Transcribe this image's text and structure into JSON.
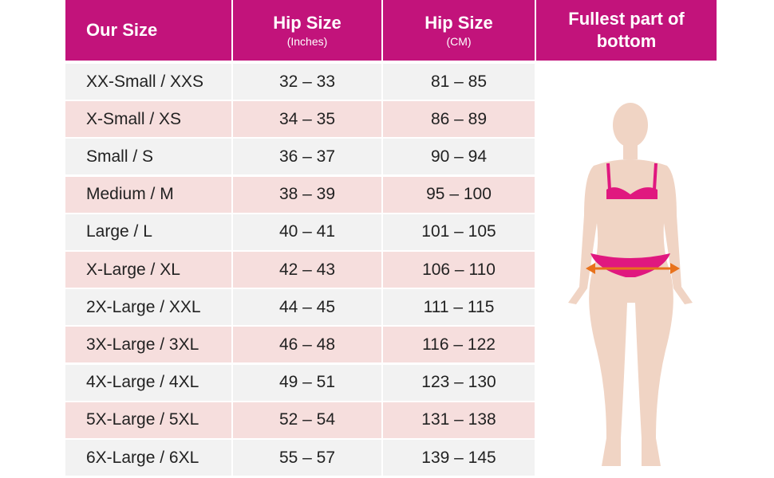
{
  "header": {
    "columns": [
      {
        "title": "Our Size"
      },
      {
        "title": "Hip Size",
        "subtitle": "(Inches)"
      },
      {
        "title": "Hip Size",
        "subtitle": "(CM)"
      },
      {
        "title": "Fullest part of bottom"
      }
    ]
  },
  "table": {
    "rows": [
      [
        "XX-Small / XXS",
        "32 – 33",
        "81 – 85"
      ],
      [
        "X-Small / XS",
        "34 – 35",
        "86 – 89"
      ],
      [
        "Small / S",
        "36 – 37",
        "90 – 94"
      ],
      [
        "Medium / M",
        "38 – 39",
        "95 – 100"
      ],
      [
        "Large / L",
        "40 – 41",
        "101 – 105"
      ],
      [
        "X-Large / XL",
        "42 – 43",
        "106 – 110"
      ],
      [
        "2X-Large / XXL",
        "44 – 45",
        "111 – 115"
      ],
      [
        "3X-Large / 3XL",
        "46 – 48",
        "116 – 122"
      ],
      [
        "4X-Large / 4XL",
        "49 – 51",
        "123 – 130"
      ],
      [
        "5X-Large / 5XL",
        "52 – 54",
        "131 – 138"
      ],
      [
        "6X-Large / 6XL",
        "55 – 57",
        "139 – 145"
      ]
    ]
  }
}
